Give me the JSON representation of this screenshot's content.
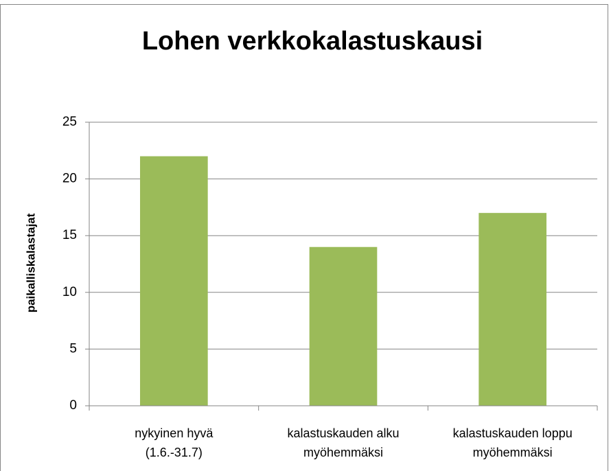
{
  "chart_data": {
    "type": "bar",
    "title": "Lohen verkkokalastuskausi",
    "y_label": "paikalliskalastajat",
    "categories": [
      [
        "nykyinen hyvä",
        "(1.6.-31.7)"
      ],
      [
        "kalastuskauden alku",
        "myöhemmäksi"
      ],
      [
        "kalastuskauden loppu",
        "myöhemmäksi"
      ]
    ],
    "values": [
      22,
      14,
      17
    ],
    "color": "#9bbb59",
    "ylim": [
      0,
      25
    ],
    "yticks": [
      0,
      5,
      10,
      15,
      20,
      25
    ],
    "grid": true
  }
}
